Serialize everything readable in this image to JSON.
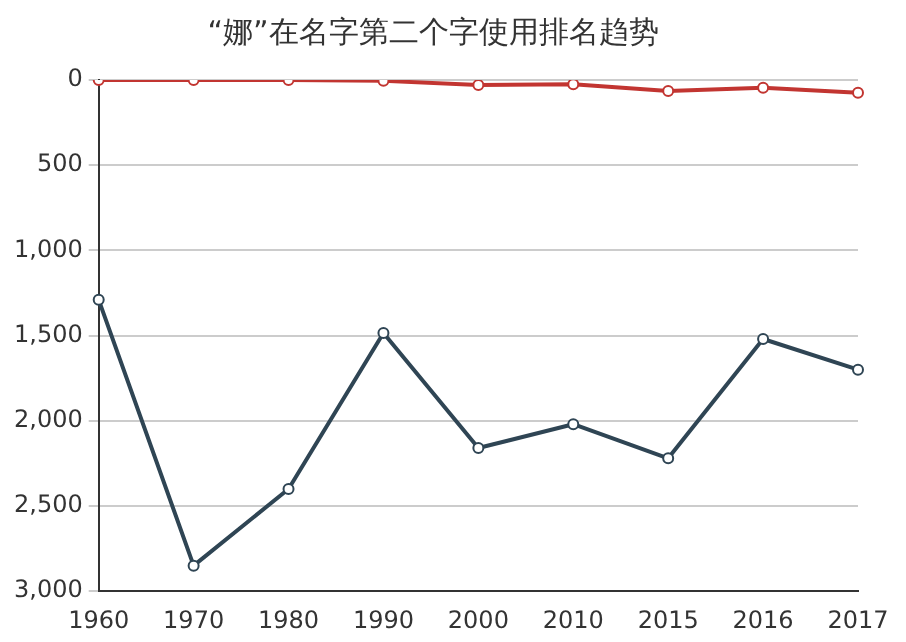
{
  "chart_data": {
    "type": "line",
    "title": "“娜”在名字第二个字使用排名趋势",
    "categories": [
      "1960",
      "1970",
      "1980",
      "1990",
      "2000",
      "2010",
      "2015",
      "2016",
      "2017"
    ],
    "series": [
      {
        "color": "#c23531",
        "values": [
          0,
          0,
          0,
          5,
          30,
          25,
          65,
          45,
          75
        ]
      },
      {
        "color": "#2f4554",
        "values": [
          1290,
          2850,
          2400,
          1485,
          2160,
          2020,
          2220,
          1520,
          1700
        ]
      }
    ],
    "ylim": [
      3000,
      0
    ],
    "yticks": [
      {
        "value": 0,
        "label": "0"
      },
      {
        "value": 500,
        "label": "500"
      },
      {
        "value": 1000,
        "label": "1,000"
      },
      {
        "value": 1500,
        "label": "1,500"
      },
      {
        "value": 2000,
        "label": "2,000"
      },
      {
        "value": 2500,
        "label": "2,500"
      },
      {
        "value": 3000,
        "label": "3,000"
      }
    ],
    "grid": "y",
    "legend": false,
    "marker": "circle",
    "line_style": "solid"
  }
}
